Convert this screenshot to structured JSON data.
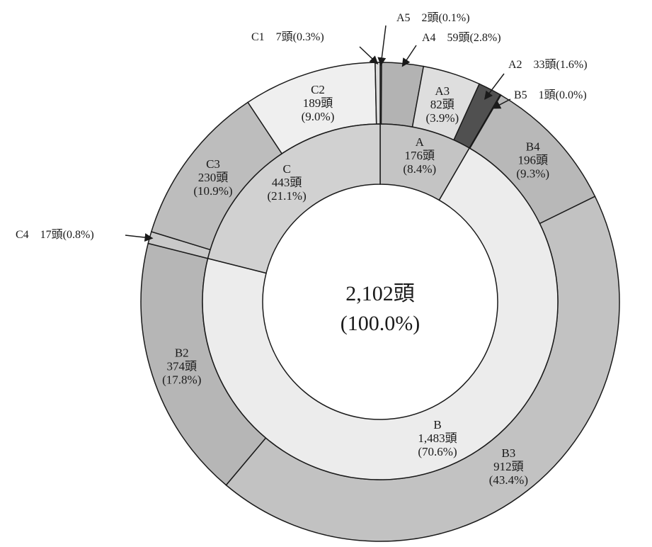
{
  "chart_data": {
    "type": "pie",
    "total": {
      "count": "2,102頭",
      "percent": "(100.0%)",
      "value": 2102
    },
    "inner": [
      {
        "key": "A",
        "name": "A",
        "count": "176頭",
        "percent": "(8.4%)",
        "value": 176,
        "color": "#c4c4c4"
      },
      {
        "key": "B",
        "name": "B",
        "count": "1,483頭",
        "percent": "(70.6%)",
        "value": 1483,
        "color": "#ececec"
      },
      {
        "key": "C",
        "name": "C",
        "count": "443頭",
        "percent": "(21.1%)",
        "value": 443,
        "color": "#d1d1d1"
      }
    ],
    "outer": [
      {
        "key": "A5",
        "name": "A5",
        "count": "2頭",
        "percent": "(0.1%)",
        "value": 2,
        "color": "#8a8a8a"
      },
      {
        "key": "A4",
        "name": "A4",
        "count": "59頭",
        "percent": "(2.8%)",
        "value": 59,
        "color": "#b3b3b3"
      },
      {
        "key": "A3",
        "name": "A3",
        "count": "82頭",
        "percent": "(3.9%)",
        "value": 82,
        "color": "#dedede"
      },
      {
        "key": "A2",
        "name": "A2",
        "count": "33頭",
        "percent": "(1.6%)",
        "value": 33,
        "color": "#505050"
      },
      {
        "key": "B5",
        "name": "B5",
        "count": "1頭",
        "percent": "(0.0%)",
        "value": 1,
        "color": "#2a2a2a"
      },
      {
        "key": "B4",
        "name": "B4",
        "count": "196頭",
        "percent": "(9.3%)",
        "value": 196,
        "color": "#b8b8b8"
      },
      {
        "key": "B3",
        "name": "B3",
        "count": "912頭",
        "percent": "(43.4%)",
        "value": 912,
        "color": "#c2c2c2"
      },
      {
        "key": "B2",
        "name": "B2",
        "count": "374頭",
        "percent": "(17.8%)",
        "value": 374,
        "color": "#b6b6b6"
      },
      {
        "key": "C4",
        "name": "C4",
        "count": "17頭",
        "percent": "(0.8%)",
        "value": 17,
        "color": "#c9c9c9"
      },
      {
        "key": "C3",
        "name": "C3",
        "count": "230頭",
        "percent": "(10.9%)",
        "value": 230,
        "color": "#bdbdbd"
      },
      {
        "key": "C2",
        "name": "C2",
        "count": "189頭",
        "percent": "(9.0%)",
        "value": 189,
        "color": "#efefef"
      },
      {
        "key": "C1",
        "name": "C1",
        "count": "7頭",
        "percent": "(0.3%)",
        "value": 7,
        "color": "#dcdcdc"
      }
    ],
    "callouts": [
      {
        "key": "A5",
        "text": "A5　2頭(0.1%)"
      },
      {
        "key": "A4",
        "text": "A4　59頭(2.8%)"
      },
      {
        "key": "C1",
        "text": "C1　7頭(0.3%)"
      },
      {
        "key": "A2",
        "text": "A2　33頭(1.6%)"
      },
      {
        "key": "B5",
        "text": "B5　1頭(0.0%)"
      },
      {
        "key": "C4",
        "text": "C4　17頭(0.8%)"
      }
    ],
    "stroke_color": "#1a1a1a"
  }
}
